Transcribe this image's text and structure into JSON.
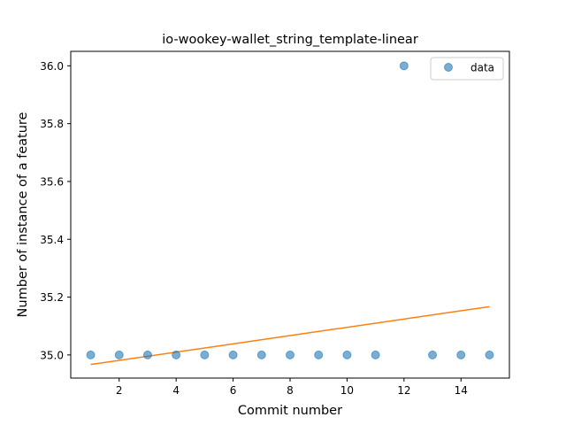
{
  "chart_data": {
    "type": "scatter",
    "title": "io-wookey-wallet_string_template-linear",
    "xlabel": "Commit number",
    "ylabel": "Number of instance of a feature",
    "xlim": [
      0.3,
      15.7
    ],
    "ylim": [
      34.92,
      36.05
    ],
    "xticks": [
      2,
      4,
      6,
      8,
      10,
      12,
      14
    ],
    "yticks": [
      35.0,
      35.2,
      35.4,
      35.6,
      35.8,
      36.0
    ],
    "xtick_labels": [
      "2",
      "4",
      "6",
      "8",
      "10",
      "12",
      "14"
    ],
    "ytick_labels": [
      "35.0",
      "35.2",
      "35.4",
      "35.6",
      "35.8",
      "36.0"
    ],
    "grid": false,
    "legend": {
      "position": "top-right",
      "entries": [
        "data"
      ]
    },
    "series": [
      {
        "name": "data",
        "kind": "scatter",
        "color": "#1f77b4",
        "x": [
          1,
          2,
          3,
          4,
          5,
          6,
          7,
          8,
          9,
          10,
          11,
          12,
          13,
          14,
          15
        ],
        "y": [
          35,
          35,
          35,
          35,
          35,
          35,
          35,
          35,
          35,
          35,
          35,
          36,
          35,
          35,
          35
        ]
      },
      {
        "kind": "line",
        "color": "#ff7f0e",
        "x": [
          1,
          15
        ],
        "y": [
          34.967,
          35.167
        ]
      }
    ]
  }
}
